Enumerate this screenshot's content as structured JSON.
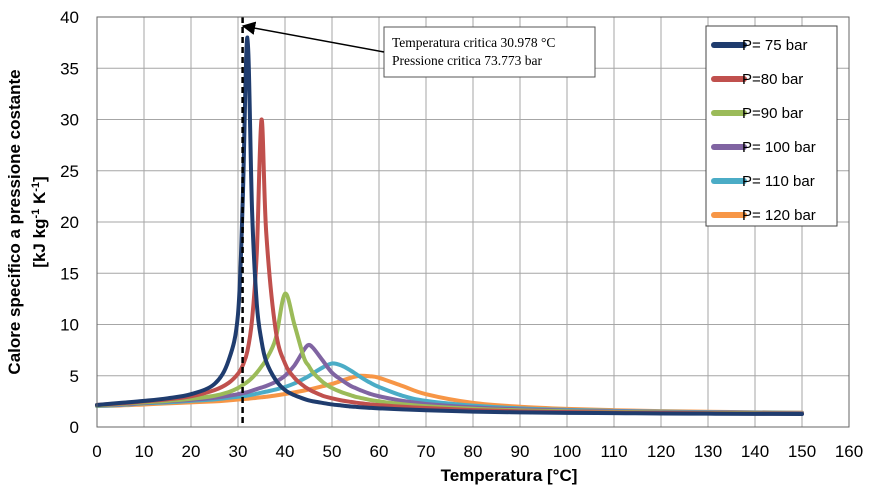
{
  "chart_data": {
    "type": "line",
    "title": "",
    "xlabel": "Temperatura [°C]",
    "ylabel_line1": "Calore specifico a pressione costante",
    "ylabel_line2_parts": [
      "[kJ kg",
      "-1",
      " K",
      "-1",
      "]"
    ],
    "xlim": [
      0,
      160
    ],
    "ylim": [
      0,
      40
    ],
    "xticks": [
      "0",
      "10",
      "20",
      "30",
      "40",
      "50",
      "60",
      "70",
      "80",
      "90",
      "100",
      "110",
      "120",
      "130",
      "140",
      "150",
      "160"
    ],
    "yticks": [
      "0",
      "5",
      "10",
      "15",
      "20",
      "25",
      "30",
      "35",
      "40"
    ],
    "grid": true,
    "legend_position": "top-right",
    "critical_temperature": 30.978,
    "annotation": {
      "line1": "Temperatura critica 30.978 °C",
      "line2": "Pressione critica 73.773 bar"
    },
    "x": [
      0,
      5,
      10,
      15,
      20,
      25,
      28,
      30,
      31,
      32,
      33,
      34,
      35,
      36,
      38,
      40,
      42,
      44,
      45,
      46,
      48,
      50,
      52,
      54,
      55,
      56,
      58,
      60,
      65,
      70,
      80,
      90,
      100,
      110,
      120,
      130,
      140,
      150
    ],
    "series": [
      {
        "name": "P= 75 bar",
        "color": "#1f3c6e",
        "values": [
          2.15,
          2.35,
          2.55,
          2.8,
          3.2,
          4.2,
          6.5,
          11,
          22,
          38,
          21,
          12,
          8.4,
          6.4,
          4.6,
          3.6,
          3.1,
          2.75,
          2.6,
          2.5,
          2.35,
          2.2,
          2.1,
          2.0,
          1.97,
          1.93,
          1.87,
          1.82,
          1.72,
          1.64,
          1.5,
          1.43,
          1.38,
          1.35,
          1.32,
          1.3,
          1.28,
          1.27
        ]
      },
      {
        "name": "P=80 bar",
        "color": "#c0504d",
        "values": [
          2.15,
          2.3,
          2.5,
          2.7,
          3.0,
          3.6,
          4.3,
          5.2,
          6.0,
          7.4,
          10.5,
          17,
          30,
          19,
          9.5,
          6.2,
          4.8,
          4.0,
          3.7,
          3.45,
          3.05,
          2.8,
          2.6,
          2.45,
          2.38,
          2.32,
          2.22,
          2.14,
          1.97,
          1.85,
          1.65,
          1.53,
          1.46,
          1.41,
          1.37,
          1.34,
          1.31,
          1.29
        ]
      },
      {
        "name": "P=90 bar",
        "color": "#9bbb59",
        "values": [
          2.1,
          2.25,
          2.4,
          2.55,
          2.75,
          3.05,
          3.4,
          3.8,
          4.1,
          4.4,
          4.8,
          5.3,
          5.9,
          6.6,
          8.6,
          13,
          10,
          6.8,
          6.0,
          5.3,
          4.4,
          3.8,
          3.4,
          3.1,
          2.95,
          2.85,
          2.65,
          2.5,
          2.22,
          2.03,
          1.78,
          1.62,
          1.53,
          1.47,
          1.42,
          1.38,
          1.35,
          1.32
        ]
      },
      {
        "name": "P= 100 bar",
        "color": "#8064a2",
        "values": [
          2.1,
          2.2,
          2.35,
          2.5,
          2.65,
          2.85,
          3.05,
          3.2,
          3.3,
          3.4,
          3.55,
          3.7,
          3.85,
          4.0,
          4.4,
          5.0,
          6.0,
          7.5,
          8.0,
          7.7,
          6.5,
          5.3,
          4.6,
          4.0,
          3.8,
          3.6,
          3.25,
          3.0,
          2.55,
          2.25,
          1.92,
          1.72,
          1.6,
          1.52,
          1.46,
          1.42,
          1.38,
          1.35
        ]
      },
      {
        "name": "P= 110 bar",
        "color": "#4bacc6",
        "values": [
          2.05,
          2.15,
          2.3,
          2.4,
          2.55,
          2.7,
          2.85,
          2.95,
          3.0,
          3.07,
          3.15,
          3.25,
          3.35,
          3.45,
          3.65,
          3.9,
          4.25,
          4.7,
          4.95,
          5.25,
          5.8,
          6.2,
          6.0,
          5.5,
          5.2,
          4.9,
          4.35,
          3.9,
          3.05,
          2.55,
          2.08,
          1.82,
          1.67,
          1.57,
          1.5,
          1.45,
          1.41,
          1.38
        ]
      },
      {
        "name": "P= 120 bar",
        "color": "#f79646",
        "values": [
          2.05,
          2.1,
          2.2,
          2.3,
          2.4,
          2.5,
          2.6,
          2.68,
          2.72,
          2.76,
          2.8,
          2.85,
          2.9,
          2.95,
          3.07,
          3.22,
          3.38,
          3.55,
          3.65,
          3.75,
          3.98,
          4.2,
          4.5,
          4.8,
          4.92,
          5.0,
          4.95,
          4.8,
          4.0,
          3.2,
          2.35,
          1.98,
          1.77,
          1.64,
          1.55,
          1.49,
          1.44,
          1.4
        ]
      }
    ]
  }
}
